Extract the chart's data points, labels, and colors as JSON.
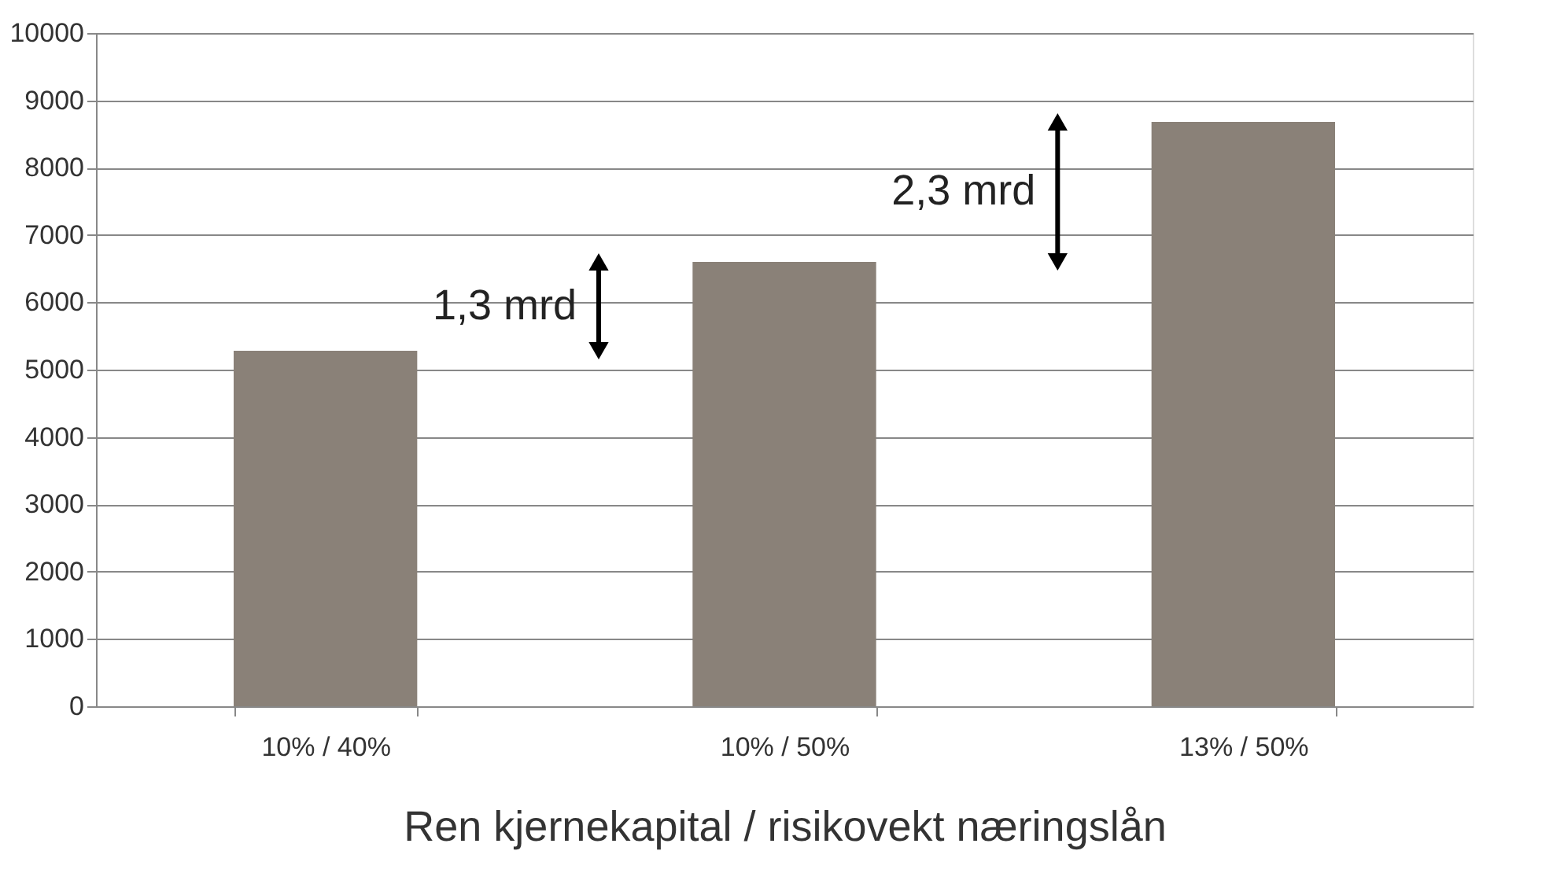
{
  "chart_data": {
    "type": "bar",
    "xlabel": "Ren kjernekapital / risikovekt næringslån",
    "categories": [
      "10% / 40%",
      "10% / 50%",
      "13% / 50%"
    ],
    "values": [
      5280,
      6600,
      8680
    ],
    "color": "#8a8178",
    "ylim": [
      0,
      10000
    ],
    "yticks": [
      0,
      1000,
      2000,
      3000,
      4000,
      5000,
      6000,
      7000,
      8000,
      9000,
      10000
    ],
    "grid": "y",
    "annotations": [
      "1,3 mrd",
      "2,3 mrd"
    ]
  }
}
